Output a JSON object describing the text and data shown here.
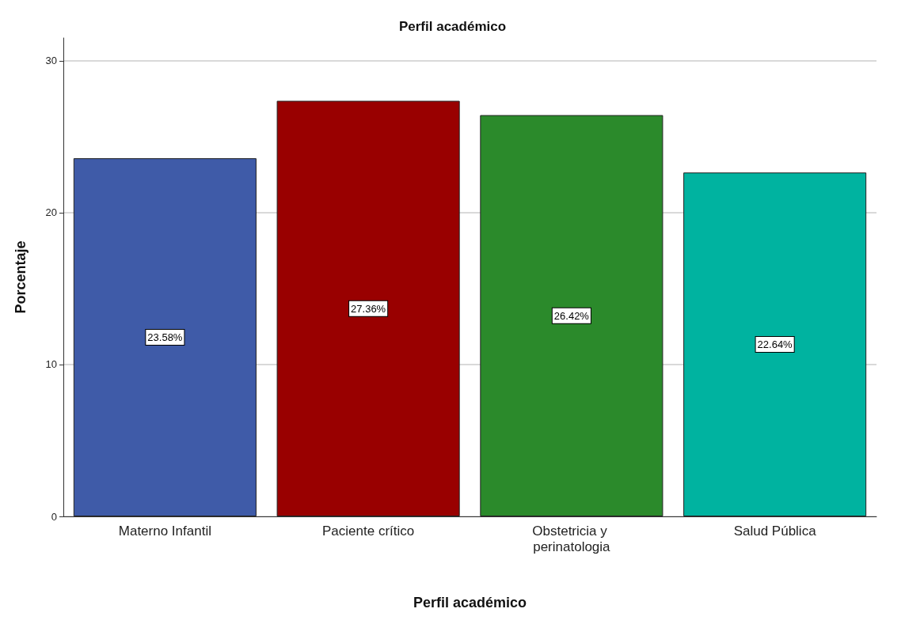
{
  "chart_data": {
    "type": "bar",
    "title": "Perfil académico",
    "xlabel": "Perfil académico",
    "ylabel": "Porcentaje",
    "categories": [
      "Materno Infantil",
      "Paciente crítico",
      "Obstetricia y perinatologia",
      "Salud Pública"
    ],
    "values": [
      23.58,
      27.36,
      26.42,
      22.64
    ],
    "colors": [
      "#3f5ba8",
      "#990000",
      "#2b8a2b",
      "#00b3a0"
    ],
    "value_labels": [
      "23.58%",
      "27.36%",
      "26.42%",
      "22.64%"
    ],
    "ylim": [
      0,
      31.5
    ],
    "yticks": [
      0,
      10,
      20,
      30
    ],
    "grid": "y"
  }
}
